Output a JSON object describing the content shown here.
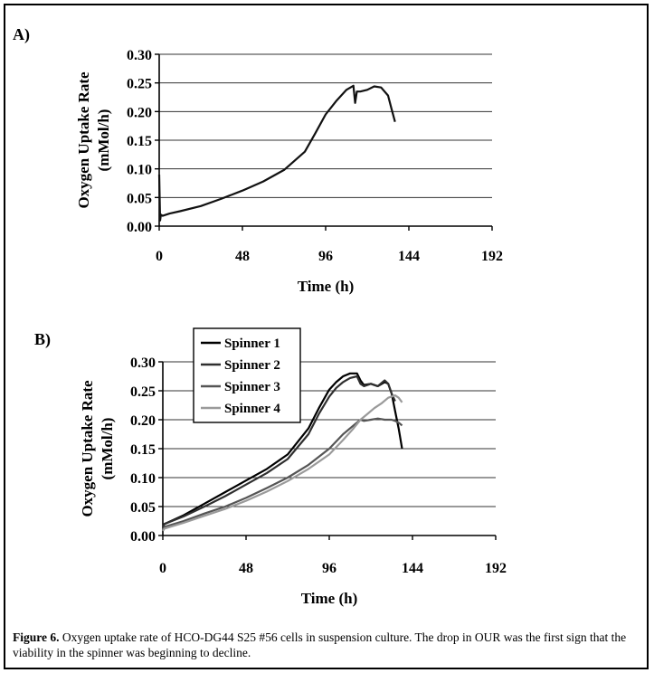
{
  "chart_data": [
    {
      "panel_label": "A)",
      "type": "line",
      "xlabel": "Time (h)",
      "ylabel_line1": "Oxygen Uptake Rate",
      "ylabel_line2": "(mMol/h)",
      "xlim": [
        0,
        192
      ],
      "ylim": [
        0,
        0.3
      ],
      "xticks": [
        0,
        48,
        96,
        144,
        192
      ],
      "yticks": [
        0.0,
        0.05,
        0.1,
        0.15,
        0.2,
        0.25,
        0.3
      ],
      "grid": "horizontal",
      "legend": "none",
      "series": [
        {
          "color": "#111111",
          "x": [
            0,
            0.5,
            1,
            2,
            6,
            12,
            24,
            36,
            48,
            60,
            72,
            84,
            90,
            96,
            102,
            108,
            112,
            113,
            114,
            116,
            120,
            124,
            128,
            132,
            134,
            136
          ],
          "y": [
            0.09,
            0.01,
            0.02,
            0.018,
            0.022,
            0.026,
            0.035,
            0.048,
            0.062,
            0.078,
            0.098,
            0.13,
            0.162,
            0.195,
            0.218,
            0.238,
            0.245,
            0.215,
            0.235,
            0.235,
            0.238,
            0.244,
            0.242,
            0.228,
            0.205,
            0.182
          ]
        }
      ]
    },
    {
      "panel_label": "B)",
      "type": "line",
      "xlabel": "Time (h)",
      "ylabel_line1": "Oxygen Uptake Rate",
      "ylabel_line2": "(mMol/h)",
      "xlim": [
        0,
        192
      ],
      "ylim": [
        0,
        0.3
      ],
      "xticks": [
        0,
        48,
        96,
        144,
        192
      ],
      "yticks": [
        0.0,
        0.05,
        0.1,
        0.15,
        0.2,
        0.25,
        0.3
      ],
      "grid": "horizontal",
      "legend": "top-left",
      "series": [
        {
          "name": "Spinner 1",
          "color": "#000000",
          "x": [
            0,
            1,
            12,
            24,
            36,
            48,
            60,
            72,
            84,
            90,
            96,
            100,
            104,
            108,
            112,
            114,
            116,
            120,
            124,
            128,
            130,
            132,
            134,
            136,
            138
          ],
          "y": [
            0.015,
            0.02,
            0.035,
            0.055,
            0.075,
            0.095,
            0.115,
            0.14,
            0.185,
            0.22,
            0.252,
            0.265,
            0.275,
            0.28,
            0.28,
            0.268,
            0.26,
            0.262,
            0.258,
            0.265,
            0.262,
            0.245,
            0.215,
            0.185,
            0.15
          ]
        },
        {
          "name": "Spinner 2",
          "color": "#2f2f2f",
          "x": [
            0,
            1,
            12,
            24,
            36,
            48,
            60,
            72,
            84,
            90,
            96,
            100,
            104,
            108,
            112,
            114,
            116,
            120,
            124,
            128,
            130,
            132,
            134
          ],
          "y": [
            0.015,
            0.02,
            0.033,
            0.05,
            0.068,
            0.088,
            0.108,
            0.132,
            0.175,
            0.21,
            0.24,
            0.255,
            0.265,
            0.272,
            0.275,
            0.262,
            0.258,
            0.262,
            0.258,
            0.268,
            0.262,
            0.245,
            0.232
          ]
        },
        {
          "name": "Spinner 3",
          "color": "#555555",
          "x": [
            0,
            1,
            12,
            24,
            36,
            48,
            60,
            72,
            84,
            96,
            104,
            110,
            114,
            116,
            120,
            124,
            128,
            132,
            134,
            136,
            138
          ],
          "y": [
            0.01,
            0.015,
            0.025,
            0.038,
            0.05,
            0.065,
            0.082,
            0.1,
            0.122,
            0.15,
            0.175,
            0.19,
            0.2,
            0.198,
            0.2,
            0.202,
            0.2,
            0.2,
            0.198,
            0.195,
            0.19
          ]
        },
        {
          "name": "Spinner 4",
          "color": "#9a9a9a",
          "x": [
            0,
            1,
            12,
            24,
            36,
            48,
            60,
            72,
            84,
            96,
            104,
            110,
            114,
            118,
            122,
            126,
            130,
            134,
            136,
            138
          ],
          "y": [
            0.008,
            0.012,
            0.022,
            0.034,
            0.046,
            0.06,
            0.076,
            0.094,
            0.115,
            0.14,
            0.165,
            0.185,
            0.2,
            0.21,
            0.22,
            0.228,
            0.238,
            0.242,
            0.238,
            0.23
          ]
        }
      ]
    }
  ],
  "caption": {
    "label": "Figure 6.",
    "text": " Oxygen uptake rate of HCO-DG44 S25 #56 cells in suspension culture.  The drop in OUR was the first sign that the viability in the spinner was beginning to decline."
  }
}
